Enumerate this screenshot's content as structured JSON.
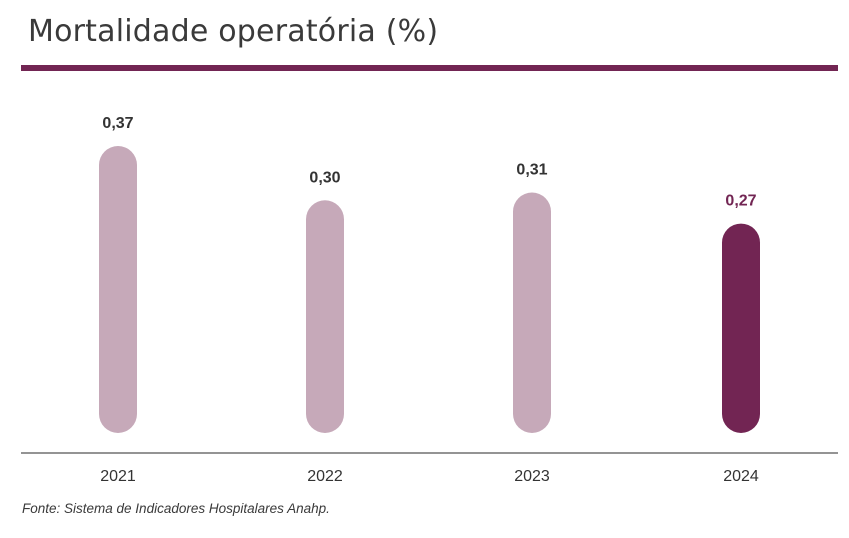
{
  "title": "Mortalidade operatória (%)",
  "source": "Fonte: Sistema de Indicadores Hospitalares Anahp.",
  "colors": {
    "accent": "#722553",
    "bar": "#c6a9b9",
    "highlight_bar": "#722553",
    "label": "#333333",
    "axis": "#555555"
  },
  "chart_data": {
    "type": "bar",
    "categories": [
      "2021",
      "2022",
      "2023",
      "2024"
    ],
    "values": [
      0.37,
      0.3,
      0.31,
      0.27
    ],
    "value_labels": [
      "0,37",
      "0,30",
      "0,31",
      "0,27"
    ],
    "highlight_index": 3,
    "title": "Mortalidade operatória (%)",
    "xlabel": "",
    "ylabel": "",
    "grid": false
  }
}
